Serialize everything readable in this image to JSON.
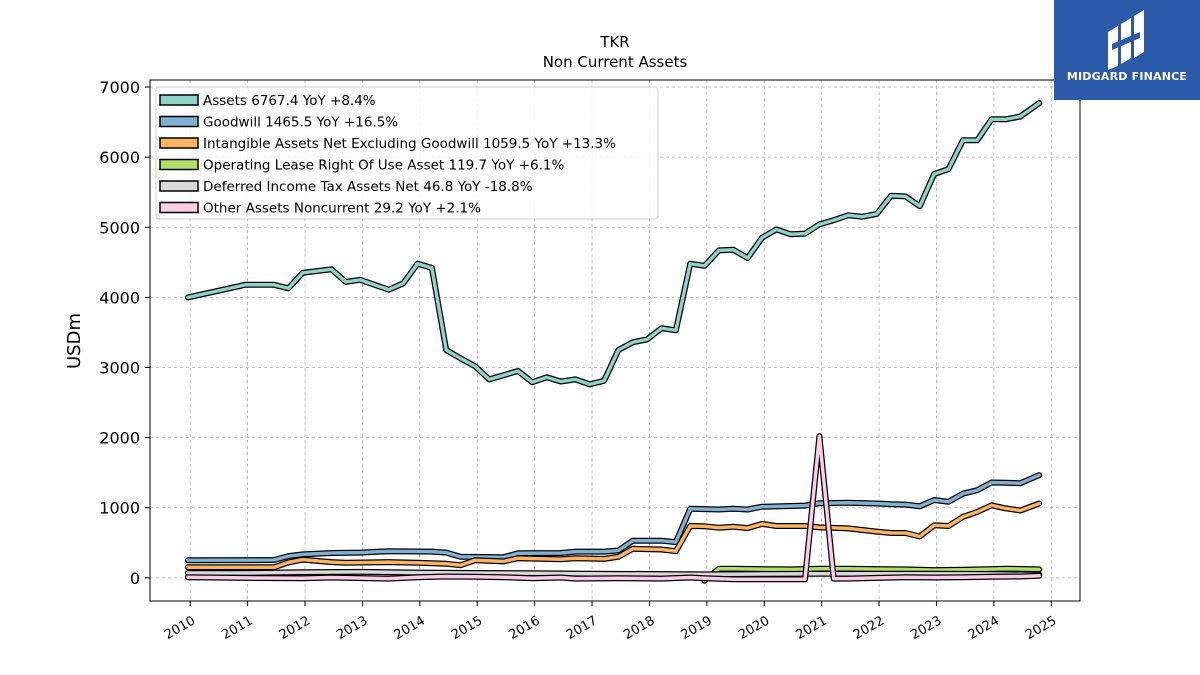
{
  "chart_data": {
    "type": "line",
    "title": "TKR",
    "subtitle": "Non Current  Assets",
    "ylabel": "USDm",
    "xlabel": "",
    "ylim": [
      -330,
      7100
    ],
    "xlim": [
      2009.3,
      2025.5
    ],
    "yticks": [
      0,
      1000,
      2000,
      3000,
      4000,
      5000,
      6000,
      7000
    ],
    "ytick_labels": [
      "0",
      "1000",
      "2000",
      "3000",
      "4000",
      "5000",
      "6000",
      "7000"
    ],
    "xticks": [
      2010,
      2011,
      2012,
      2013,
      2014,
      2015,
      2016,
      2017,
      2018,
      2019,
      2020,
      2021,
      2022,
      2023,
      2024,
      2025
    ],
    "xtick_labels": [
      "2010",
      "2011",
      "2012",
      "2013",
      "2014",
      "2015",
      "2016",
      "2017",
      "2018",
      "2019",
      "2020",
      "2021",
      "2022",
      "2023",
      "2024",
      "2025"
    ],
    "grid": true,
    "legend_position": "top-left",
    "series": [
      {
        "name": "Assets  6767.4 YoY +8.4%",
        "color": "#8dd3c7",
        "points": [
          [
            2009.96,
            4000
          ],
          [
            2010.96,
            4180
          ],
          [
            2011.46,
            4180
          ],
          [
            2011.71,
            4130
          ],
          [
            2011.96,
            4350
          ],
          [
            2012.46,
            4400
          ],
          [
            2012.71,
            4220
          ],
          [
            2012.96,
            4250
          ],
          [
            2013.46,
            4110
          ],
          [
            2013.71,
            4200
          ],
          [
            2013.96,
            4480
          ],
          [
            2014.21,
            4420
          ],
          [
            2014.46,
            3250
          ],
          [
            2014.71,
            3130
          ],
          [
            2014.96,
            3020
          ],
          [
            2015.21,
            2830
          ],
          [
            2015.71,
            2950
          ],
          [
            2015.96,
            2790
          ],
          [
            2016.21,
            2860
          ],
          [
            2016.46,
            2800
          ],
          [
            2016.71,
            2830
          ],
          [
            2016.96,
            2760
          ],
          [
            2017.21,
            2810
          ],
          [
            2017.46,
            3250
          ],
          [
            2017.71,
            3360
          ],
          [
            2017.96,
            3400
          ],
          [
            2018.21,
            3560
          ],
          [
            2018.46,
            3530
          ],
          [
            2018.71,
            4480
          ],
          [
            2018.96,
            4450
          ],
          [
            2019.21,
            4670
          ],
          [
            2019.46,
            4680
          ],
          [
            2019.71,
            4560
          ],
          [
            2019.96,
            4850
          ],
          [
            2020.21,
            4970
          ],
          [
            2020.46,
            4900
          ],
          [
            2020.71,
            4910
          ],
          [
            2020.96,
            5040
          ],
          [
            2021.21,
            5100
          ],
          [
            2021.46,
            5170
          ],
          [
            2021.71,
            5150
          ],
          [
            2021.96,
            5190
          ],
          [
            2022.21,
            5450
          ],
          [
            2022.46,
            5440
          ],
          [
            2022.71,
            5300
          ],
          [
            2022.96,
            5760
          ],
          [
            2023.21,
            5830
          ],
          [
            2023.46,
            6240
          ],
          [
            2023.71,
            6240
          ],
          [
            2023.96,
            6540
          ],
          [
            2024.21,
            6540
          ],
          [
            2024.46,
            6580
          ],
          [
            2024.79,
            6770
          ]
        ]
      },
      {
        "name": "Goodwill  1465.5 YoY +16.5%",
        "color": "#80b1d3",
        "points": [
          [
            2009.96,
            250
          ],
          [
            2011.46,
            255
          ],
          [
            2011.71,
            310
          ],
          [
            2011.96,
            335
          ],
          [
            2012.46,
            355
          ],
          [
            2012.96,
            360
          ],
          [
            2013.46,
            380
          ],
          [
            2014.21,
            375
          ],
          [
            2014.46,
            360
          ],
          [
            2014.71,
            300
          ],
          [
            2015.46,
            295
          ],
          [
            2015.71,
            350
          ],
          [
            2016.46,
            355
          ],
          [
            2016.71,
            375
          ],
          [
            2017.21,
            375
          ],
          [
            2017.46,
            390
          ],
          [
            2017.71,
            530
          ],
          [
            2018.21,
            530
          ],
          [
            2018.46,
            510
          ],
          [
            2018.71,
            985
          ],
          [
            2018.96,
            980
          ],
          [
            2019.21,
            975
          ],
          [
            2019.46,
            985
          ],
          [
            2019.71,
            975
          ],
          [
            2019.96,
            1015
          ],
          [
            2020.46,
            1025
          ],
          [
            2020.71,
            1030
          ],
          [
            2020.96,
            1065
          ],
          [
            2021.46,
            1070
          ],
          [
            2021.96,
            1060
          ],
          [
            2022.21,
            1050
          ],
          [
            2022.46,
            1045
          ],
          [
            2022.71,
            1020
          ],
          [
            2022.96,
            1110
          ],
          [
            2023.21,
            1085
          ],
          [
            2023.46,
            1200
          ],
          [
            2023.71,
            1250
          ],
          [
            2023.96,
            1360
          ],
          [
            2024.21,
            1355
          ],
          [
            2024.46,
            1350
          ],
          [
            2024.79,
            1465
          ]
        ]
      },
      {
        "name": "Intangible Assets Net Excluding Goodwill  1059.5 YoY +13.3%",
        "color": "#fdb462",
        "points": [
          [
            2009.96,
            150
          ],
          [
            2011.46,
            150
          ],
          [
            2011.71,
            220
          ],
          [
            2011.96,
            260
          ],
          [
            2012.46,
            225
          ],
          [
            2012.71,
            215
          ],
          [
            2013.46,
            225
          ],
          [
            2013.96,
            215
          ],
          [
            2014.46,
            200
          ],
          [
            2014.71,
            180
          ],
          [
            2014.96,
            250
          ],
          [
            2015.46,
            235
          ],
          [
            2015.71,
            280
          ],
          [
            2016.46,
            265
          ],
          [
            2016.71,
            280
          ],
          [
            2017.21,
            270
          ],
          [
            2017.46,
            300
          ],
          [
            2017.71,
            415
          ],
          [
            2018.21,
            405
          ],
          [
            2018.46,
            380
          ],
          [
            2018.71,
            740
          ],
          [
            2018.96,
            735
          ],
          [
            2019.21,
            715
          ],
          [
            2019.46,
            730
          ],
          [
            2019.71,
            710
          ],
          [
            2019.96,
            770
          ],
          [
            2020.21,
            740
          ],
          [
            2020.71,
            740
          ],
          [
            2020.96,
            720
          ],
          [
            2021.46,
            705
          ],
          [
            2021.96,
            660
          ],
          [
            2022.21,
            640
          ],
          [
            2022.46,
            640
          ],
          [
            2022.71,
            590
          ],
          [
            2022.96,
            750
          ],
          [
            2023.21,
            740
          ],
          [
            2023.46,
            870
          ],
          [
            2023.71,
            940
          ],
          [
            2023.96,
            1035
          ],
          [
            2024.21,
            990
          ],
          [
            2024.46,
            960
          ],
          [
            2024.79,
            1060
          ]
        ]
      },
      {
        "name": "Operating Lease Right Of Use Asset  119.7 YoY +6.1%",
        "color": "#b3de69",
        "points": [
          [
            2018.96,
            -40
          ],
          [
            2019.21,
            130
          ],
          [
            2019.46,
            130
          ],
          [
            2019.96,
            125
          ],
          [
            2020.46,
            120
          ],
          [
            2020.96,
            130
          ],
          [
            2021.46,
            130
          ],
          [
            2021.96,
            125
          ],
          [
            2022.46,
            120
          ],
          [
            2022.96,
            110
          ],
          [
            2023.46,
            115
          ],
          [
            2023.96,
            125
          ],
          [
            2024.21,
            130
          ],
          [
            2024.79,
            120
          ]
        ]
      },
      {
        "name": "Deferred Income Tax Assets Net  46.8 YoY -18.8%",
        "color": "#d9d9d9",
        "points": [
          [
            2009.96,
            70
          ],
          [
            2010.96,
            70
          ],
          [
            2011.96,
            80
          ],
          [
            2012.96,
            85
          ],
          [
            2013.96,
            75
          ],
          [
            2014.96,
            70
          ],
          [
            2015.96,
            65
          ],
          [
            2016.96,
            60
          ],
          [
            2017.96,
            55
          ],
          [
            2018.96,
            50
          ],
          [
            2019.96,
            55
          ],
          [
            2020.96,
            60
          ],
          [
            2021.96,
            60
          ],
          [
            2022.96,
            58
          ],
          [
            2023.96,
            55
          ],
          [
            2024.79,
            47
          ]
        ]
      },
      {
        "name": "Other Assets Noncurrent  29.2 YoY +2.1%",
        "color": "#fccde5",
        "points": [
          [
            2009.96,
            10
          ],
          [
            2010.96,
            0
          ],
          [
            2011.96,
            -5
          ],
          [
            2012.46,
            5
          ],
          [
            2013.46,
            -10
          ],
          [
            2013.96,
            10
          ],
          [
            2014.46,
            20
          ],
          [
            2014.96,
            15
          ],
          [
            2015.46,
            10
          ],
          [
            2015.96,
            -5
          ],
          [
            2016.46,
            5
          ],
          [
            2016.71,
            -10
          ],
          [
            2017.46,
            -5
          ],
          [
            2018.21,
            -10
          ],
          [
            2018.71,
            5
          ],
          [
            2018.96,
            -5
          ],
          [
            2019.46,
            -20
          ],
          [
            2019.96,
            -20
          ],
          [
            2020.46,
            -20
          ],
          [
            2020.71,
            -20
          ],
          [
            2020.96,
            2020
          ],
          [
            2021.21,
            -10
          ],
          [
            2021.46,
            -10
          ],
          [
            2021.96,
            0
          ],
          [
            2022.46,
            10
          ],
          [
            2022.96,
            5
          ],
          [
            2023.46,
            10
          ],
          [
            2023.96,
            15
          ],
          [
            2024.46,
            20
          ],
          [
            2024.79,
            29
          ]
        ]
      }
    ]
  },
  "logo": {
    "text": "MIDGARD FINANCE"
  }
}
